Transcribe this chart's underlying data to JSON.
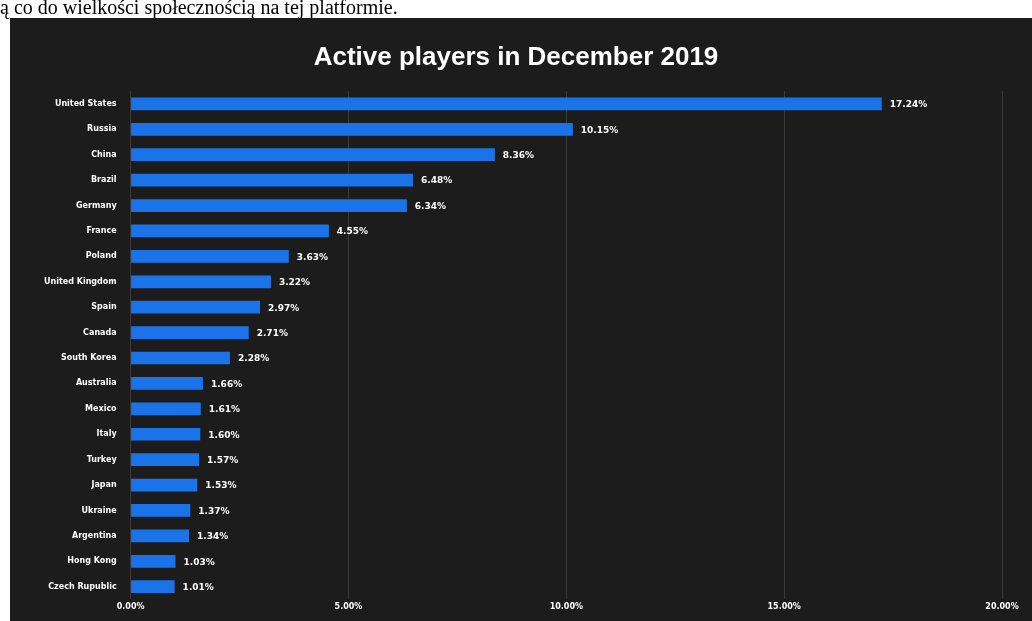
{
  "chart_data": {
    "type": "bar",
    "orientation": "horizontal",
    "title": "Active players in December 2019",
    "categories": [
      "United States",
      "Russia",
      "China",
      "Brazil",
      "Germany",
      "France",
      "Poland",
      "United Kingdom",
      "Spain",
      "Canada",
      "South Korea",
      "Australia",
      "Mexico",
      "Italy",
      "Turkey",
      "Japan",
      "Ukraine",
      "Argentina",
      "Hong Kong",
      "Czech Rupublic"
    ],
    "values": [
      17.24,
      10.15,
      8.36,
      6.48,
      6.34,
      4.55,
      3.63,
      3.22,
      2.97,
      2.71,
      2.28,
      1.66,
      1.61,
      1.6,
      1.57,
      1.53,
      1.37,
      1.34,
      1.03,
      1.01
    ],
    "value_labels": [
      "17.24%",
      "10.15%",
      "8.36%",
      "6.48%",
      "6.34%",
      "4.55%",
      "3.63%",
      "3.22%",
      "2.97%",
      "2.71%",
      "2.28%",
      "1.66%",
      "1.61%",
      "1.60%",
      "1.57%",
      "1.53%",
      "1.37%",
      "1.34%",
      "1.03%",
      "1.01%"
    ],
    "color": "#1a73e8",
    "xlim": [
      0,
      20
    ],
    "xticks": [
      {
        "value": 0,
        "label": "0.00%"
      },
      {
        "value": 5,
        "label": "5.00%"
      },
      {
        "value": 10,
        "label": "10.00%"
      },
      {
        "value": 15,
        "label": "15.00%"
      },
      {
        "value": 20,
        "label": "20.00%"
      }
    ],
    "grid": "x",
    "legend": false,
    "annotations": [
      "ą co do wielkości społecznością na tej platformie."
    ]
  }
}
